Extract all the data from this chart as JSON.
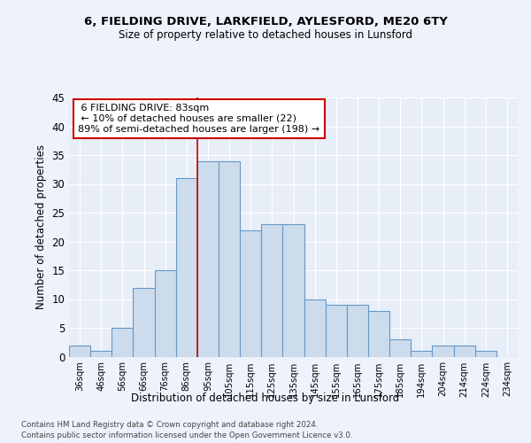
{
  "title1": "6, FIELDING DRIVE, LARKFIELD, AYLESFORD, ME20 6TY",
  "title2": "Size of property relative to detached houses in Lunsford",
  "xlabel": "Distribution of detached houses by size in Lunsford",
  "ylabel": "Number of detached properties",
  "bins": [
    "36sqm",
    "46sqm",
    "56sqm",
    "66sqm",
    "76sqm",
    "86sqm",
    "95sqm",
    "105sqm",
    "115sqm",
    "125sqm",
    "135sqm",
    "145sqm",
    "155sqm",
    "165sqm",
    "175sqm",
    "185sqm",
    "194sqm",
    "204sqm",
    "214sqm",
    "224sqm",
    "234sqm"
  ],
  "values": [
    2,
    1,
    5,
    12,
    15,
    31,
    34,
    34,
    22,
    23,
    23,
    10,
    9,
    9,
    8,
    3,
    1,
    2,
    2,
    1,
    0
  ],
  "bar_color": "#ccdcec",
  "bar_edge_color": "#6698c8",
  "red_line_x": 5.5,
  "marker_label": "6 FIELDING DRIVE: 83sqm",
  "annotation1": "← 10% of detached houses are smaller (22)",
  "annotation2": "89% of semi-detached houses are larger (198) →",
  "footer1": "Contains HM Land Registry data © Crown copyright and database right 2024.",
  "footer2": "Contains public sector information licensed under the Open Government Licence v3.0.",
  "bg_color": "#eef2fc",
  "plot_bg_color": "#e8eef8",
  "grid_color": "#ffffff",
  "red_line_color": "#cc0000",
  "annot_bg": "#ffffff",
  "annot_edge": "#cc0000",
  "ylim": [
    0,
    45
  ],
  "yticks": [
    0,
    5,
    10,
    15,
    20,
    25,
    30,
    35,
    40,
    45
  ]
}
